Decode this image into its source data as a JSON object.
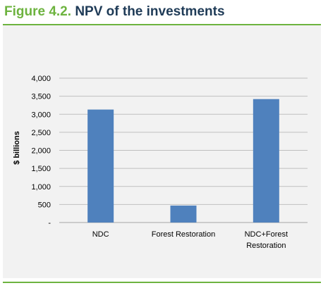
{
  "figure": {
    "number": "Figure 4.2.",
    "title": "NPV of the investments",
    "accent_color": "#6db33f",
    "title_color": "#1f3b57",
    "panel_color": "#f2f2f2"
  },
  "chart_data": {
    "type": "bar",
    "categories": [
      [
        "NDC"
      ],
      [
        "Forest Restoration"
      ],
      [
        "NDC+Forest",
        "Restoration"
      ]
    ],
    "values": [
      3130,
      470,
      3420
    ],
    "ylabel": "$ billions",
    "ylim": [
      0,
      4000
    ],
    "yticks": [
      0,
      500,
      1000,
      1500,
      2000,
      2500,
      3000,
      3500,
      4000
    ],
    "ytick_labels": [
      "-",
      "500",
      "1,000",
      "1,500",
      "2,000",
      "2,500",
      "3,000",
      "3,500",
      "4,000"
    ],
    "bar_color": "#4f81bd",
    "grid": true
  }
}
